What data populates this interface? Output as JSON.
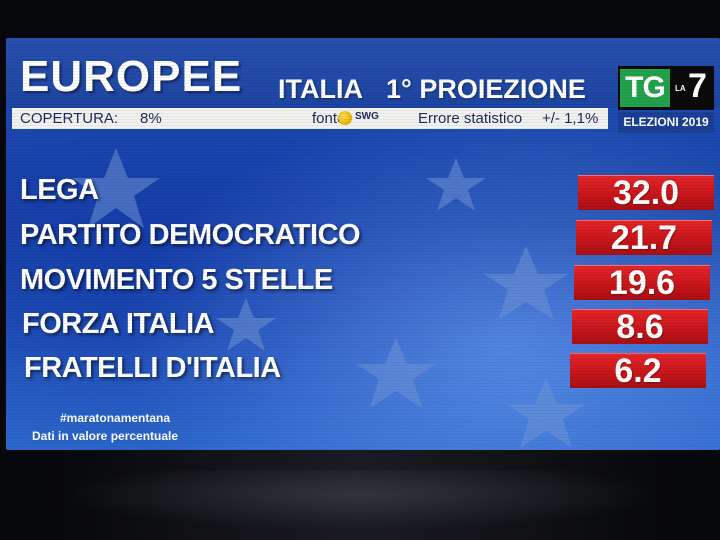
{
  "header": {
    "title": "EUROPEE",
    "region": "ITALIA",
    "projection": "1° PROIEZIONE"
  },
  "infobar": {
    "coverage_label": "COPERTURA:",
    "coverage_value": "8%",
    "source_label": "fonte:",
    "source_logo_text": "SWG",
    "error_label": "Errore statistico",
    "error_value": "+/- 1,1%"
  },
  "logo": {
    "tg": "TG",
    "la": "LA",
    "seven": "7",
    "edition": "ELEZIONI 2019"
  },
  "results": [
    {
      "party": "LEGA",
      "value": "32.0"
    },
    {
      "party": "PARTITO DEMOCRATICO",
      "value": "21.7"
    },
    {
      "party": "MOVIMENTO 5 STELLE",
      "value": "19.6"
    },
    {
      "party": "FORZA ITALIA",
      "value": "8.6"
    },
    {
      "party": "FRATELLI D'ITALIA",
      "value": "6.2"
    }
  ],
  "footer": {
    "hashtag": "#maratonamentana",
    "note": "Dati in valore percentuale"
  },
  "colors": {
    "background_blue": "#1f4fb8",
    "value_red": "#c9161b",
    "logo_green": "#22a24a",
    "star_color": "#6f93d6"
  }
}
